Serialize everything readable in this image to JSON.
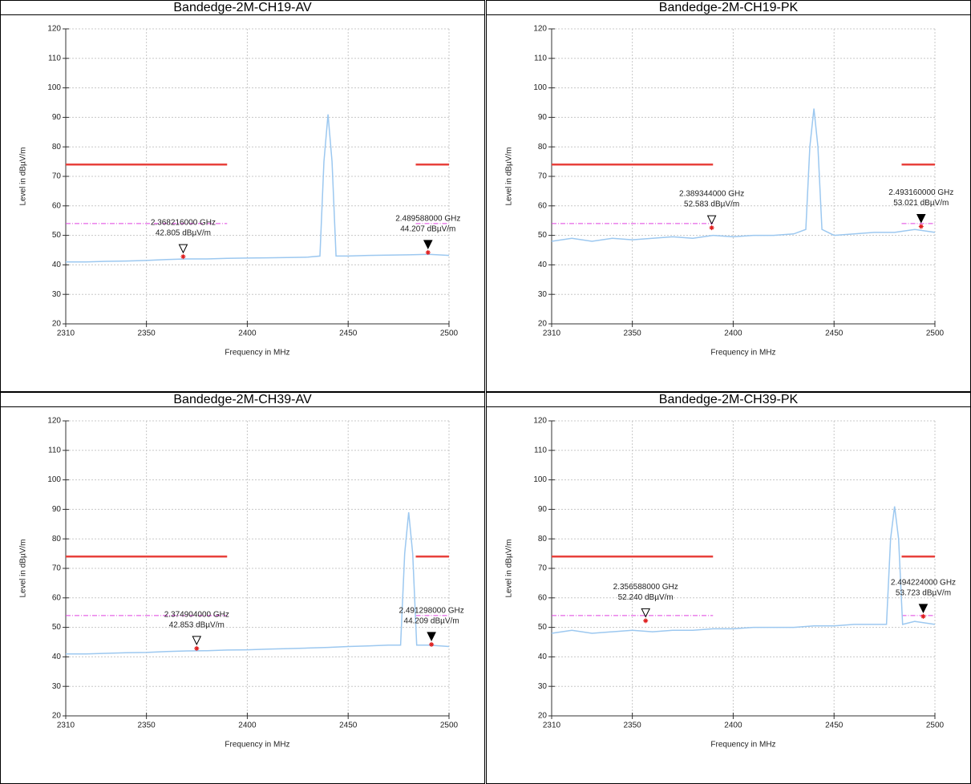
{
  "chart_data": [
    {
      "type": "line",
      "title": "Bandedge-2M-CH19-AV",
      "xlabel": "Frequency in MHz",
      "ylabel": "Level in dBµV/m",
      "xlim": [
        2310,
        2500
      ],
      "xticks": [
        2310,
        2350,
        2400,
        2450,
        2500
      ],
      "ylim": [
        20,
        120
      ],
      "yticks": [
        20,
        30,
        40,
        50,
        60,
        70,
        80,
        90,
        100,
        110,
        120
      ],
      "grid": true,
      "x": [
        2310,
        2320,
        2330,
        2340,
        2350,
        2360,
        2370,
        2380,
        2390,
        2400,
        2410,
        2420,
        2430,
        2436,
        2438,
        2440,
        2442,
        2444,
        2450,
        2460,
        2470,
        2480,
        2490,
        2500
      ],
      "series": [
        {
          "color": "#9cc8f0",
          "values": [
            41,
            41,
            41.2,
            41.3,
            41.5,
            41.8,
            42,
            42,
            42.2,
            42.3,
            42.4,
            42.5,
            42.6,
            43,
            75,
            91,
            75,
            43,
            43,
            43.2,
            43.3,
            43.4,
            43.6,
            43.2
          ]
        }
      ],
      "reference_lines": [
        {
          "x": [
            2310,
            2390
          ],
          "y": 74,
          "color": "#e8413c",
          "dashed": false
        },
        {
          "x": [
            2483.5,
            2500
          ],
          "y": 74,
          "color": "#e8413c",
          "dashed": false
        },
        {
          "x": [
            2310,
            2390
          ],
          "y": 54,
          "color": "#e040e0",
          "dashed": true
        },
        {
          "x": [
            2483.5,
            2500
          ],
          "y": 54,
          "color": "#e040e0",
          "dashed": true
        }
      ],
      "markers": [
        {
          "x": 2368.216,
          "x_label": "2.368216000 GHz",
          "y": 42.805,
          "y_label": "42.805 dBµV/m",
          "filled": false
        },
        {
          "x": 2489.588,
          "x_label": "2.489588000 GHz",
          "y": 44.207,
          "y_label": "44.207 dBµV/m",
          "filled": true
        }
      ]
    },
    {
      "type": "line",
      "title": "Bandedge-2M-CH19-PK",
      "xlabel": "Frequency in MHz",
      "ylabel": "Level in dBµV/m",
      "xlim": [
        2310,
        2500
      ],
      "xticks": [
        2310,
        2350,
        2400,
        2450,
        2500
      ],
      "ylim": [
        20,
        120
      ],
      "yticks": [
        20,
        30,
        40,
        50,
        60,
        70,
        80,
        90,
        100,
        110,
        120
      ],
      "grid": true,
      "x": [
        2310,
        2320,
        2330,
        2340,
        2350,
        2360,
        2370,
        2380,
        2390,
        2400,
        2410,
        2420,
        2430,
        2436,
        2438,
        2440,
        2442,
        2444,
        2450,
        2460,
        2470,
        2480,
        2490,
        2500
      ],
      "series": [
        {
          "color": "#9cc8f0",
          "values": [
            48,
            49,
            48,
            49,
            48.5,
            49,
            49.5,
            49,
            50,
            49.5,
            50,
            50,
            50.5,
            52,
            80,
            93,
            80,
            52,
            50,
            50.5,
            51,
            51,
            52,
            51
          ]
        }
      ],
      "reference_lines": [
        {
          "x": [
            2310,
            2390
          ],
          "y": 74,
          "color": "#e8413c",
          "dashed": false
        },
        {
          "x": [
            2483.5,
            2500
          ],
          "y": 74,
          "color": "#e8413c",
          "dashed": false
        },
        {
          "x": [
            2310,
            2390
          ],
          "y": 54,
          "color": "#e040e0",
          "dashed": true
        },
        {
          "x": [
            2483.5,
            2500
          ],
          "y": 54,
          "color": "#e040e0",
          "dashed": true
        }
      ],
      "markers": [
        {
          "x": 2389.344,
          "x_label": "2.389344000 GHz",
          "y": 52.583,
          "y_label": "52.583 dBµV/m",
          "filled": false
        },
        {
          "x": 2493.16,
          "x_label": "2.493160000 GHz",
          "y": 53.021,
          "y_label": "53.021 dBµV/m",
          "filled": true
        }
      ]
    },
    {
      "type": "line",
      "title": "Bandedge-2M-CH39-AV",
      "xlabel": "Frequency in MHz",
      "ylabel": "Level in dBµV/m",
      "xlim": [
        2310,
        2500
      ],
      "xticks": [
        2310,
        2350,
        2400,
        2450,
        2500
      ],
      "ylim": [
        20,
        120
      ],
      "yticks": [
        20,
        30,
        40,
        50,
        60,
        70,
        80,
        90,
        100,
        110,
        120
      ],
      "grid": true,
      "x": [
        2310,
        2320,
        2330,
        2340,
        2350,
        2360,
        2370,
        2380,
        2390,
        2400,
        2410,
        2420,
        2430,
        2440,
        2450,
        2460,
        2470,
        2476,
        2478,
        2480,
        2482,
        2484,
        2490,
        2500
      ],
      "series": [
        {
          "color": "#9cc8f0",
          "values": [
            41,
            41,
            41.2,
            41.4,
            41.5,
            41.8,
            42,
            42.1,
            42.3,
            42.4,
            42.6,
            42.8,
            43,
            43.2,
            43.5,
            43.7,
            44,
            44,
            75,
            89,
            75,
            44,
            44,
            43.5
          ]
        }
      ],
      "reference_lines": [
        {
          "x": [
            2310,
            2390
          ],
          "y": 74,
          "color": "#e8413c",
          "dashed": false
        },
        {
          "x": [
            2483.5,
            2500
          ],
          "y": 74,
          "color": "#e8413c",
          "dashed": false
        },
        {
          "x": [
            2310,
            2390
          ],
          "y": 54,
          "color": "#e040e0",
          "dashed": true
        },
        {
          "x": [
            2483.5,
            2500
          ],
          "y": 54,
          "color": "#e040e0",
          "dashed": true
        }
      ],
      "markers": [
        {
          "x": 2374.904,
          "x_label": "2.374904000 GHz",
          "y": 42.853,
          "y_label": "42.853 dBµV/m",
          "filled": false
        },
        {
          "x": 2491.298,
          "x_label": "2.491298000 GHz",
          "y": 44.209,
          "y_label": "44.209 dBµV/m",
          "filled": true
        }
      ]
    },
    {
      "type": "line",
      "title": "Bandedge-2M-CH39-PK",
      "xlabel": "Frequency in MHz",
      "ylabel": "Level in dBµV/m",
      "xlim": [
        2310,
        2500
      ],
      "xticks": [
        2310,
        2350,
        2400,
        2450,
        2500
      ],
      "ylim": [
        20,
        120
      ],
      "yticks": [
        20,
        30,
        40,
        50,
        60,
        70,
        80,
        90,
        100,
        110,
        120
      ],
      "grid": true,
      "x": [
        2310,
        2320,
        2330,
        2340,
        2350,
        2360,
        2370,
        2380,
        2390,
        2400,
        2410,
        2420,
        2430,
        2440,
        2450,
        2460,
        2470,
        2476,
        2478,
        2480,
        2482,
        2484,
        2490,
        2500
      ],
      "series": [
        {
          "color": "#9cc8f0",
          "values": [
            48,
            49,
            48,
            48.5,
            49,
            48.5,
            49,
            49,
            49.5,
            49.5,
            50,
            50,
            50,
            50.5,
            50.5,
            51,
            51,
            51,
            80,
            91,
            80,
            51,
            52,
            51
          ]
        }
      ],
      "reference_lines": [
        {
          "x": [
            2310,
            2390
          ],
          "y": 74,
          "color": "#e8413c",
          "dashed": false
        },
        {
          "x": [
            2483.5,
            2500
          ],
          "y": 74,
          "color": "#e8413c",
          "dashed": false
        },
        {
          "x": [
            2310,
            2390
          ],
          "y": 54,
          "color": "#e040e0",
          "dashed": true
        },
        {
          "x": [
            2483.5,
            2500
          ],
          "y": 54,
          "color": "#e040e0",
          "dashed": true
        }
      ],
      "markers": [
        {
          "x": 2356.588,
          "x_label": "2.356588000 GHz",
          "y": 52.24,
          "y_label": "52.240 dBµV/m",
          "filled": false
        },
        {
          "x": 2494.224,
          "x_label": "2.494224000 GHz",
          "y": 53.723,
          "y_label": "53.723 dBµV/m",
          "filled": true
        }
      ]
    }
  ]
}
